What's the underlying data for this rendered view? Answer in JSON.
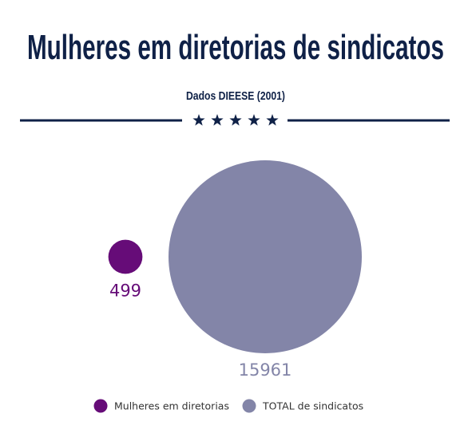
{
  "chart_data": {
    "type": "bubble",
    "title": "Mulheres em diretorias de sindicatos",
    "subtitle": "Dados DIEESE (2001)",
    "series": [
      {
        "name": "Mulheres em diretorias",
        "color": "#660c78",
        "values": [
          499
        ]
      },
      {
        "name": "TOTAL de sindicatos",
        "color": "#8385a8",
        "values": [
          15961
        ]
      }
    ]
  }
}
